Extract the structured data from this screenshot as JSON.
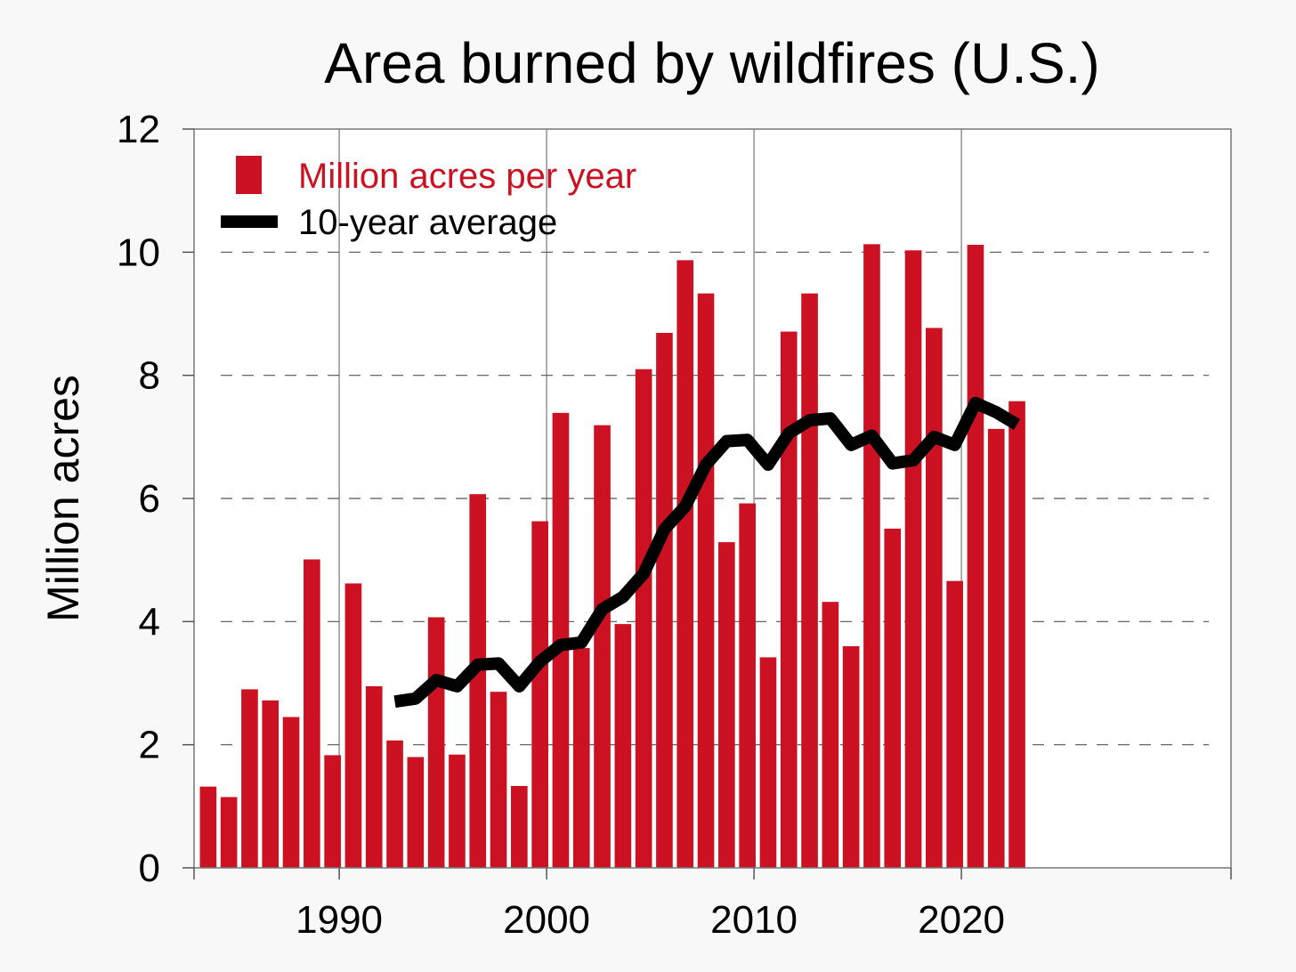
{
  "chart_data": {
    "type": "bar",
    "title": "Area burned by wildfires (U.S.)",
    "xlabel": "",
    "ylabel": "Million acres",
    "ylim": [
      0,
      12
    ],
    "xlim": [
      1983,
      2033
    ],
    "yticks": [
      0,
      2,
      4,
      6,
      8,
      10,
      12
    ],
    "xticks": [
      1990,
      2000,
      2010,
      2020
    ],
    "ytick_labels": [
      "0",
      "2",
      "4",
      "6",
      "8",
      "10",
      "12"
    ],
    "xtick_labels": [
      "1990",
      "2000",
      "2010",
      "2020"
    ],
    "grid": "horizontal dashed, vertical solid at decades",
    "legend_position": "top-left",
    "series": [
      {
        "name": "Million acres per year",
        "type": "bar",
        "color": "#cc1122",
        "x": [
          1983,
          1984,
          1985,
          1986,
          1987,
          1988,
          1989,
          1990,
          1991,
          1992,
          1993,
          1994,
          1995,
          1996,
          1997,
          1998,
          1999,
          2000,
          2001,
          2002,
          2003,
          2004,
          2005,
          2006,
          2007,
          2008,
          2009,
          2010,
          2011,
          2012,
          2013,
          2014,
          2015,
          2016,
          2017,
          2018,
          2019,
          2020,
          2021,
          2022
        ],
        "values": [
          1.32,
          1.15,
          2.9,
          2.72,
          2.45,
          5.01,
          1.83,
          4.62,
          2.95,
          2.07,
          1.8,
          4.07,
          1.84,
          6.07,
          2.86,
          1.33,
          5.63,
          7.39,
          3.57,
          7.19,
          3.96,
          8.1,
          8.69,
          9.87,
          9.33,
          5.29,
          5.92,
          3.42,
          8.71,
          9.33,
          4.32,
          3.6,
          10.13,
          5.51,
          10.03,
          8.77,
          4.66,
          10.12,
          7.13,
          7.58
        ]
      },
      {
        "name": "10-year average",
        "type": "line",
        "color": "#000000",
        "x": [
          1992,
          1993,
          1994,
          1995,
          1996,
          1997,
          1998,
          1999,
          2000,
          2001,
          2002,
          2003,
          2004,
          2005,
          2006,
          2007,
          2008,
          2009,
          2010,
          2011,
          2012,
          2013,
          2014,
          2015,
          2016,
          2017,
          2018,
          2019,
          2020,
          2021,
          2022
        ],
        "values": [
          2.7,
          2.75,
          3.05,
          2.95,
          3.3,
          3.32,
          2.95,
          3.35,
          3.62,
          3.66,
          4.2,
          4.4,
          4.78,
          5.5,
          5.87,
          6.55,
          6.93,
          6.95,
          6.55,
          7.06,
          7.27,
          7.3,
          6.87,
          7.02,
          6.57,
          6.62,
          7.0,
          6.87,
          7.55,
          7.4,
          7.2
        ]
      }
    ]
  }
}
